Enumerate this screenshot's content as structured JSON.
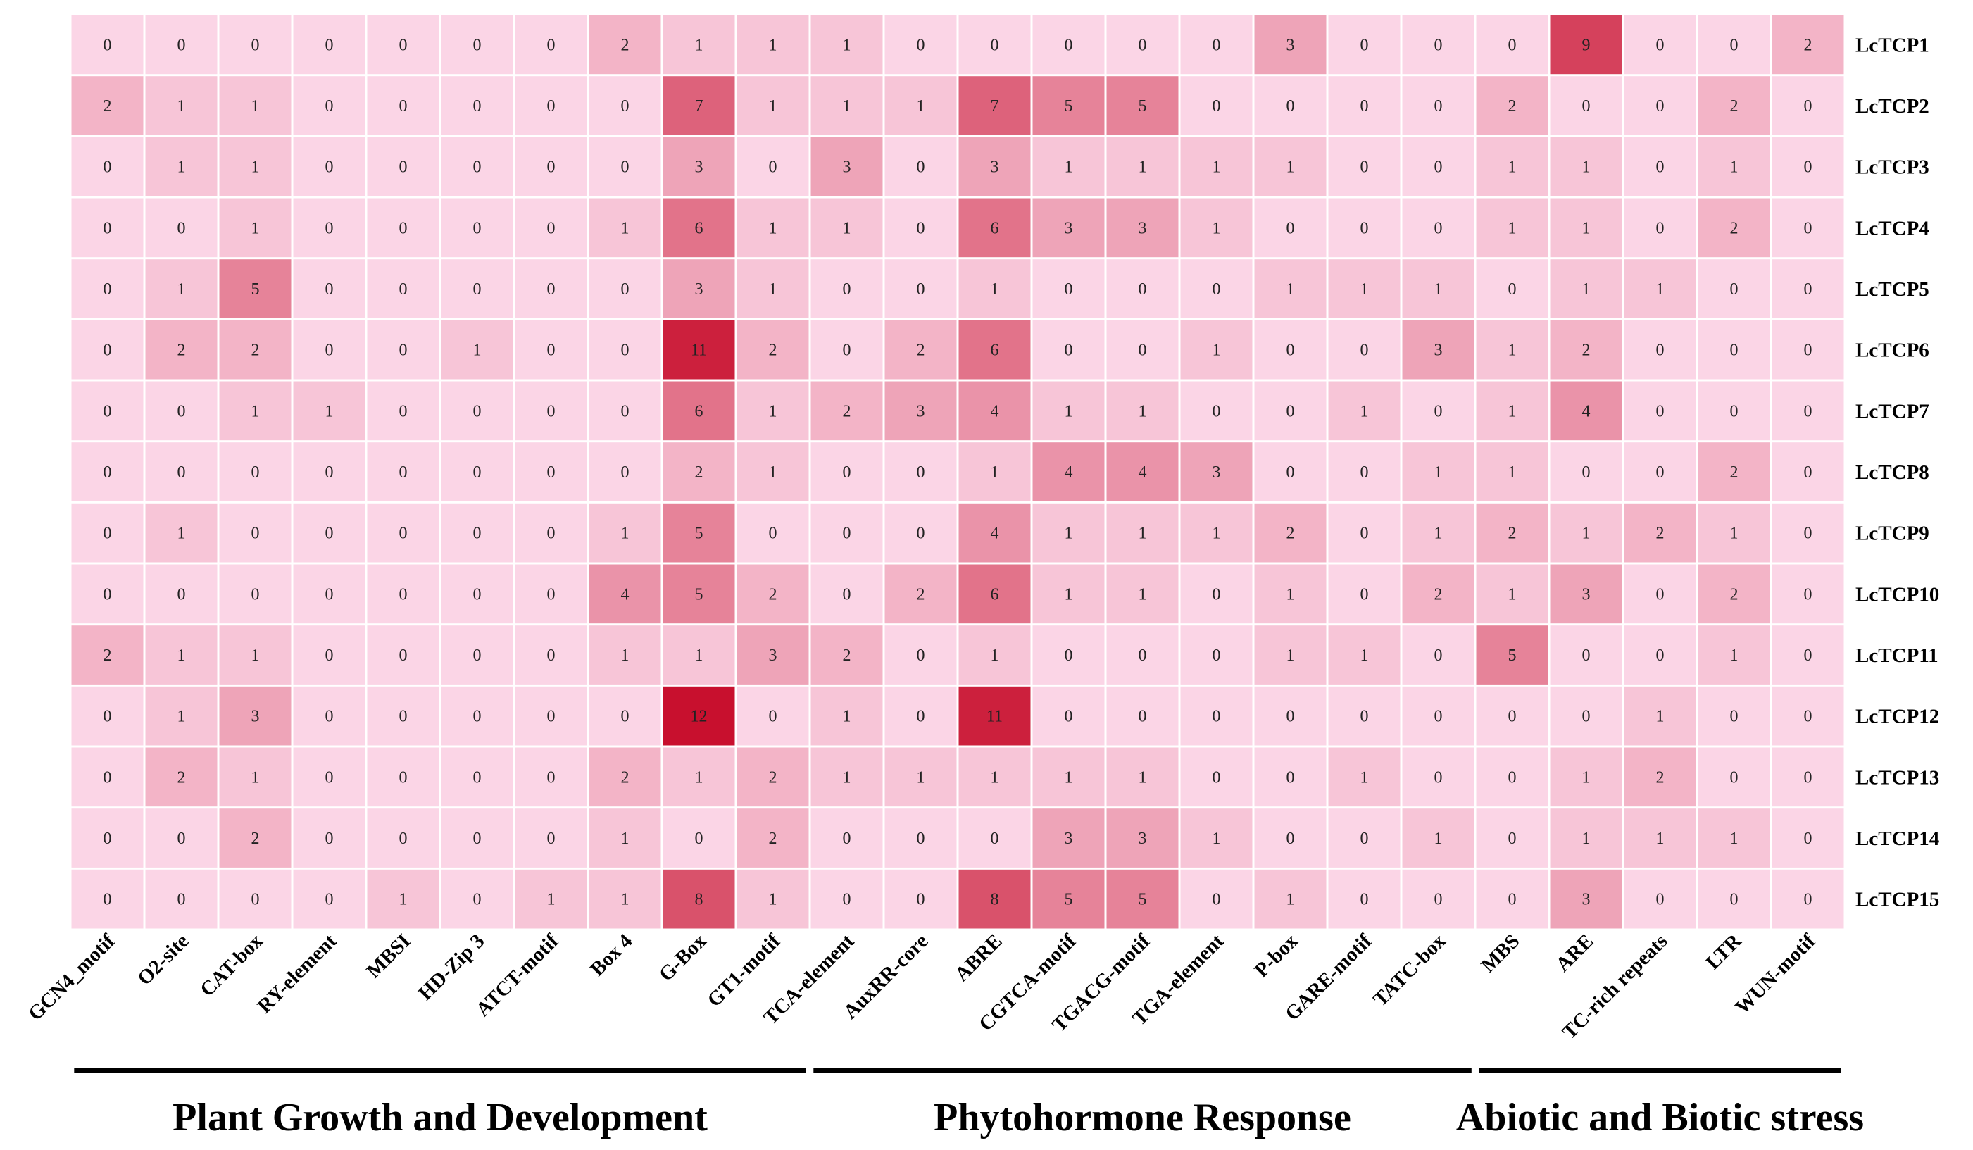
{
  "chart_data": {
    "type": "heatmap",
    "title": "",
    "rows": [
      "LcTCP1",
      "LcTCP2",
      "LcTCP3",
      "LcTCP4",
      "LcTCP5",
      "LcTCP6",
      "LcTCP7",
      "LcTCP8",
      "LcTCP9",
      "LcTCP10",
      "LcTCP11",
      "LcTCP12",
      "LcTCP13",
      "LcTCP14",
      "LcTCP15"
    ],
    "columns": [
      "GCN4_motif",
      "O2-site",
      "CAT-box",
      "RY-element",
      "MBSI",
      "HD-Zip 3",
      "ATCT-motif",
      "Box 4",
      "G-Box",
      "GT1-motif",
      "TCA-element",
      "AuxRR-core",
      "ABRE",
      "CGTCA-motif",
      "TGACG-motif",
      "TGA-element",
      "P-box",
      "GARE-motif",
      "TATC-box",
      "MBS",
      "ARE",
      "TC-rich repeats",
      "LTR",
      "WUN-motif"
    ],
    "values": [
      [
        0,
        0,
        0,
        0,
        0,
        0,
        0,
        2,
        1,
        1,
        1,
        0,
        0,
        0,
        0,
        0,
        3,
        0,
        0,
        0,
        9,
        0,
        0,
        2
      ],
      [
        2,
        1,
        1,
        0,
        0,
        0,
        0,
        0,
        7,
        1,
        1,
        1,
        7,
        5,
        5,
        0,
        0,
        0,
        0,
        2,
        0,
        0,
        2,
        0
      ],
      [
        0,
        1,
        1,
        0,
        0,
        0,
        0,
        0,
        3,
        0,
        3,
        0,
        3,
        1,
        1,
        1,
        1,
        0,
        0,
        1,
        1,
        0,
        1,
        0
      ],
      [
        0,
        0,
        1,
        0,
        0,
        0,
        0,
        1,
        6,
        1,
        1,
        0,
        6,
        3,
        3,
        1,
        0,
        0,
        0,
        1,
        1,
        0,
        2,
        0
      ],
      [
        0,
        1,
        5,
        0,
        0,
        0,
        0,
        0,
        3,
        1,
        0,
        0,
        1,
        0,
        0,
        0,
        1,
        1,
        1,
        0,
        1,
        1,
        0,
        0
      ],
      [
        0,
        2,
        2,
        0,
        0,
        1,
        0,
        0,
        11,
        2,
        0,
        2,
        6,
        0,
        0,
        1,
        0,
        0,
        3,
        1,
        2,
        0,
        0,
        0
      ],
      [
        0,
        0,
        1,
        1,
        0,
        0,
        0,
        0,
        6,
        1,
        2,
        3,
        4,
        1,
        1,
        0,
        0,
        1,
        0,
        1,
        4,
        0,
        0,
        0
      ],
      [
        0,
        0,
        0,
        0,
        0,
        0,
        0,
        0,
        2,
        1,
        0,
        0,
        1,
        4,
        4,
        3,
        0,
        0,
        1,
        1,
        0,
        0,
        2,
        0
      ],
      [
        0,
        1,
        0,
        0,
        0,
        0,
        0,
        1,
        5,
        0,
        0,
        0,
        4,
        1,
        1,
        1,
        2,
        0,
        1,
        2,
        1,
        2,
        1,
        0
      ],
      [
        0,
        0,
        0,
        0,
        0,
        0,
        0,
        4,
        5,
        2,
        0,
        2,
        6,
        1,
        1,
        0,
        1,
        0,
        2,
        1,
        3,
        0,
        2,
        0
      ],
      [
        2,
        1,
        1,
        0,
        0,
        0,
        0,
        1,
        1,
        3,
        2,
        0,
        1,
        0,
        0,
        0,
        1,
        1,
        0,
        5,
        0,
        0,
        1,
        0
      ],
      [
        0,
        1,
        3,
        0,
        0,
        0,
        0,
        0,
        12,
        0,
        1,
        0,
        11,
        0,
        0,
        0,
        0,
        0,
        0,
        0,
        0,
        1,
        0,
        0
      ],
      [
        0,
        2,
        1,
        0,
        0,
        0,
        0,
        2,
        1,
        2,
        1,
        1,
        1,
        1,
        1,
        0,
        0,
        1,
        0,
        0,
        1,
        2,
        0,
        0
      ],
      [
        0,
        0,
        2,
        0,
        0,
        0,
        0,
        1,
        0,
        2,
        0,
        0,
        0,
        3,
        3,
        1,
        0,
        0,
        1,
        0,
        1,
        1,
        1,
        0
      ],
      [
        0,
        0,
        0,
        0,
        1,
        0,
        1,
        1,
        8,
        1,
        0,
        0,
        8,
        5,
        5,
        0,
        1,
        0,
        0,
        0,
        3,
        0,
        0,
        0
      ]
    ],
    "groups": [
      {
        "label": "Plant Growth and Development",
        "start": 0,
        "end": 9
      },
      {
        "label": "Phytohormone Response",
        "start": 10,
        "end": 18
      },
      {
        "label": "Abiotic and Biotic stress",
        "start": 19,
        "end": 23
      }
    ],
    "color_scale": {
      "min": 0,
      "max": 12,
      "min_color": "#fbd5e6",
      "max_color": "#c8102e"
    }
  }
}
